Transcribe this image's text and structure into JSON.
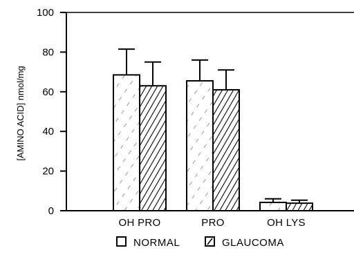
{
  "chart_data": {
    "type": "bar",
    "ylabel": "[AMINO ACID] nmol/mg",
    "xlabel": "",
    "ylim": [
      0,
      100
    ],
    "yticks": [
      "0",
      "20",
      "40",
      "60",
      "80",
      "100"
    ],
    "categories": [
      "OH PRO",
      "PRO",
      "OH LYS"
    ],
    "series": [
      {
        "name": "NORMAL",
        "values": [
          68.5,
          65.5,
          4.2
        ],
        "errors": [
          13,
          10.5,
          1.8
        ],
        "pattern": "sparse-hatch"
      },
      {
        "name": "GLAUCOMA",
        "values": [
          63,
          61,
          3.8
        ],
        "errors": [
          12,
          10,
          1.5
        ],
        "pattern": "dense-hatch"
      }
    ],
    "legend_position": "bottom",
    "grid": false
  }
}
